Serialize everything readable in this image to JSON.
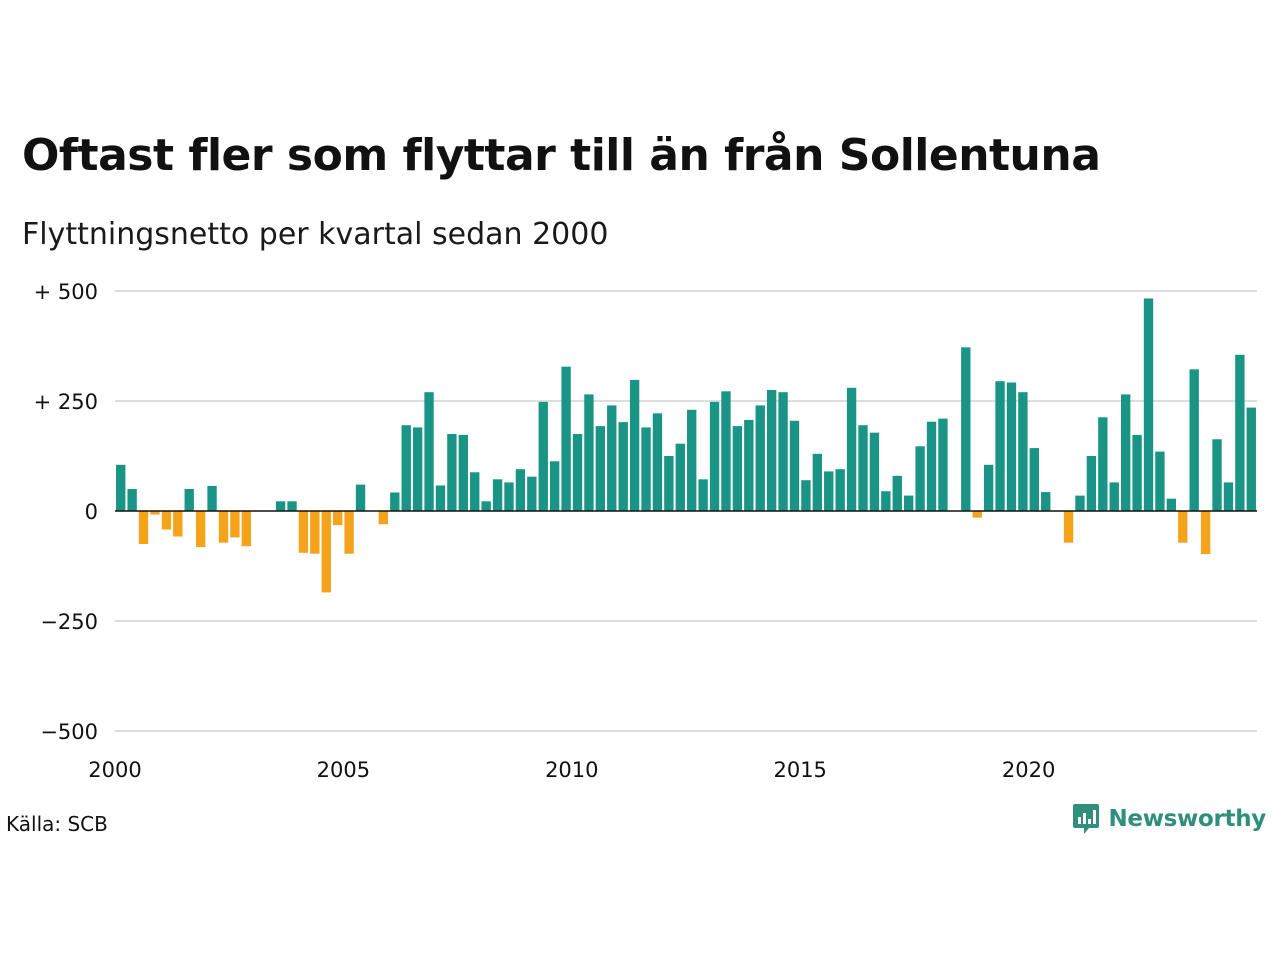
{
  "title": "Oftast fler som flyttar till än från Sollentuna",
  "subtitle": "Flyttningsnetto per kvartal sedan 2000",
  "source": "Källa: SCB",
  "brand": "Newsworthy",
  "colors": {
    "positive": "#1a9585",
    "negative": "#f5a31a",
    "grid": "#dddddd",
    "brand": "#2f8f7c"
  },
  "chart_data": {
    "type": "bar",
    "ylim": [
      -500,
      500
    ],
    "yticks": [
      {
        "value": 500,
        "label": "+ 500"
      },
      {
        "value": 250,
        "label": "+ 250"
      },
      {
        "value": 0,
        "label": "0"
      },
      {
        "value": -250,
        "label": "−250"
      },
      {
        "value": -500,
        "label": "−500"
      }
    ],
    "xticks": [
      "2000",
      "2005",
      "2010",
      "2015",
      "2020"
    ],
    "grid": true,
    "start_year": 2000,
    "values": [
      105,
      50,
      -75,
      -8,
      -42,
      -58,
      50,
      -82,
      57,
      -72,
      -60,
      -80,
      0,
      0,
      22,
      22,
      -95,
      -97,
      -185,
      -32,
      -97,
      60,
      0,
      -30,
      42,
      195,
      190,
      270,
      58,
      175,
      173,
      88,
      22,
      72,
      65,
      95,
      78,
      248,
      113,
      328,
      175,
      265,
      193,
      240,
      202,
      298,
      190,
      222,
      125,
      153,
      230,
      72,
      248,
      272,
      193,
      207,
      240,
      275,
      270,
      205,
      70,
      130,
      90,
      95,
      280,
      195,
      178,
      45,
      80,
      35,
      147,
      203,
      210,
      0,
      372,
      -15,
      105,
      295,
      292,
      270,
      143,
      43,
      0,
      -72,
      35,
      125,
      213,
      65,
      265,
      173,
      483,
      135,
      28,
      -72,
      322,
      -98,
      163,
      65,
      355,
      235
    ]
  }
}
